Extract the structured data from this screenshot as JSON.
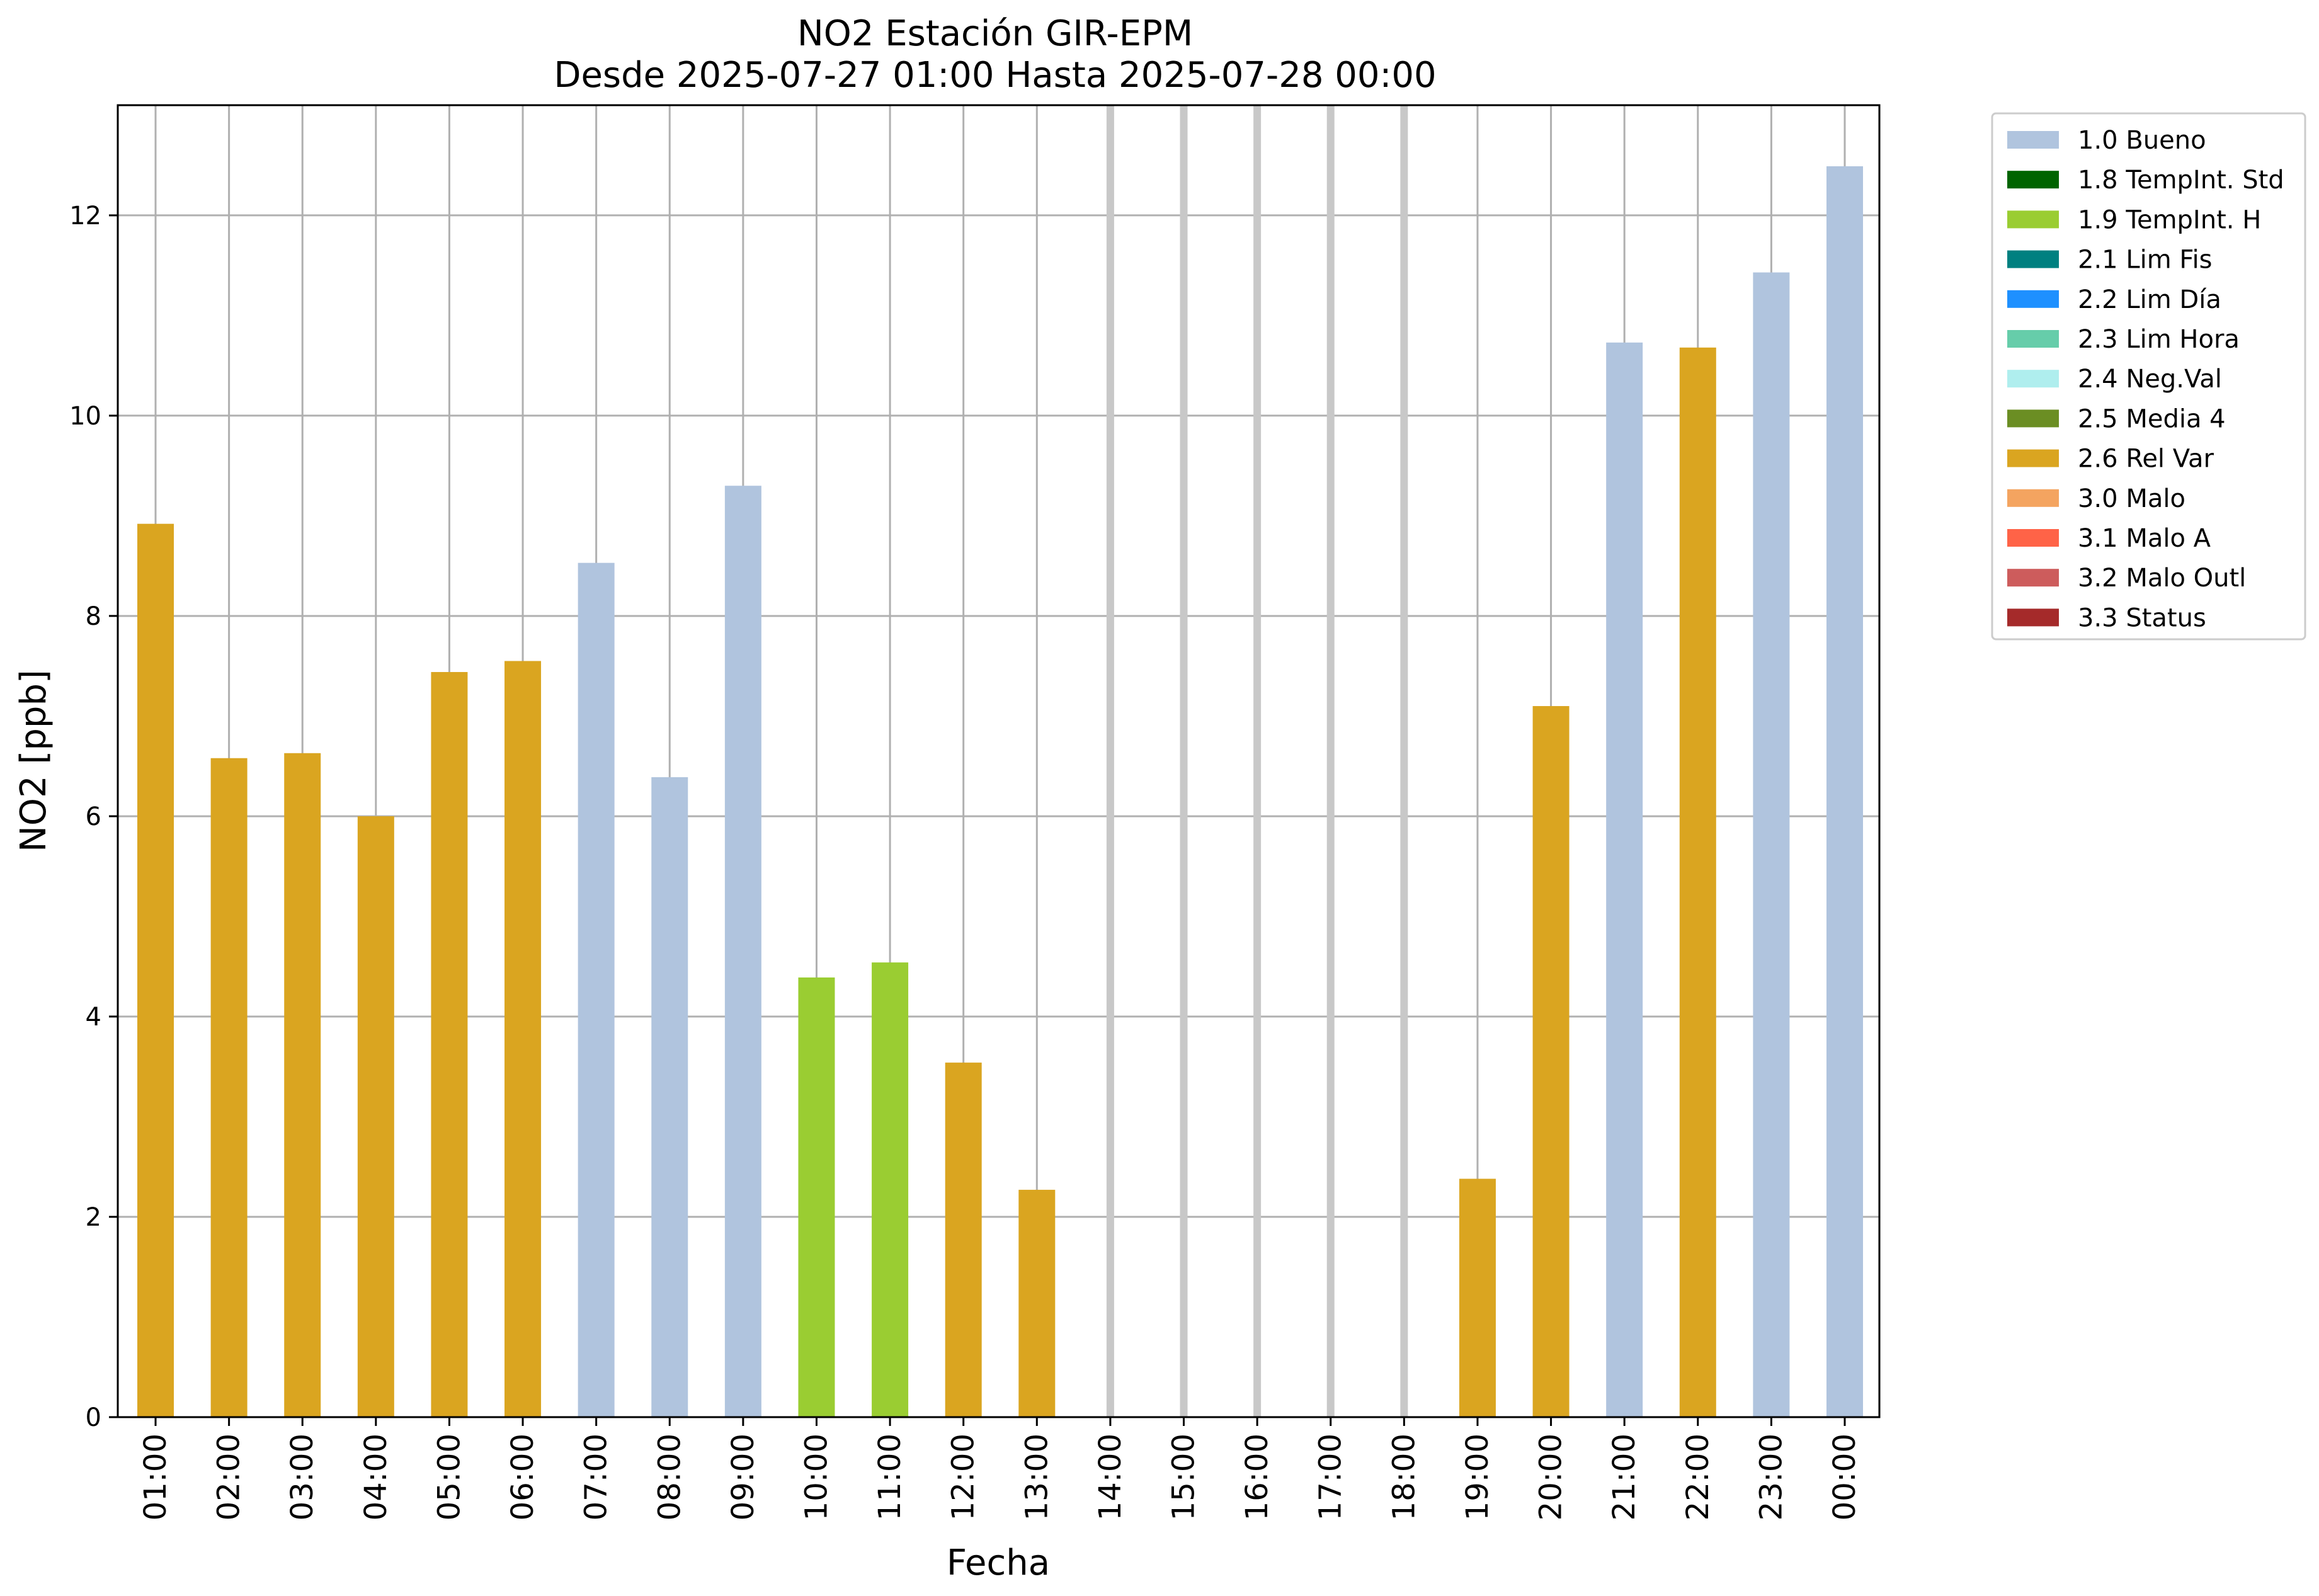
{
  "chart_data": {
    "type": "bar",
    "title": "NO2 Estación GIR-EPM",
    "subtitle": "Desde 2025-07-27 01:00 Hasta 2025-07-28 00:00",
    "xlabel": "Fecha",
    "ylabel": "NO2 [ppb]",
    "ylim": [
      0,
      13.1
    ],
    "yticks": [
      0,
      2,
      4,
      6,
      8,
      10,
      12
    ],
    "grid": true,
    "legend_position": "outside-top-right",
    "categories": [
      "01:00",
      "02:00",
      "03:00",
      "04:00",
      "05:00",
      "06:00",
      "07:00",
      "08:00",
      "09:00",
      "10:00",
      "11:00",
      "12:00",
      "13:00",
      "14:00",
      "15:00",
      "16:00",
      "17:00",
      "18:00",
      "19:00",
      "20:00",
      "21:00",
      "22:00",
      "23:00",
      "00:00"
    ],
    "values": [
      8.92,
      6.58,
      6.63,
      6.0,
      7.44,
      7.55,
      8.53,
      6.39,
      9.3,
      4.39,
      4.54,
      3.54,
      2.27,
      null,
      null,
      null,
      null,
      null,
      2.38,
      7.1,
      10.73,
      10.68,
      11.43,
      12.49
    ],
    "flags": [
      "2.6",
      "2.6",
      "2.6",
      "2.6",
      "2.6",
      "2.6",
      "1.0",
      "1.0",
      "1.0",
      "1.9",
      "1.9",
      "2.6",
      "2.6",
      null,
      null,
      null,
      null,
      null,
      "2.6",
      "2.6",
      "1.0",
      "2.6",
      "1.0",
      "1.0"
    ],
    "legend": [
      {
        "code": "1.0",
        "label": "1.0 Bueno",
        "color": "#b0c4de"
      },
      {
        "code": "1.8",
        "label": "1.8 TempInt. Std",
        "color": "#006400"
      },
      {
        "code": "1.9",
        "label": "1.9 TempInt. H",
        "color": "#9acd32"
      },
      {
        "code": "2.1",
        "label": "2.1 Lim Fis",
        "color": "#008080"
      },
      {
        "code": "2.2",
        "label": "2.2 Lim Día",
        "color": "#1e90ff"
      },
      {
        "code": "2.3",
        "label": "2.3 Lim Hora",
        "color": "#66cdaa"
      },
      {
        "code": "2.4",
        "label": "2.4 Neg.Val",
        "color": "#afeeee"
      },
      {
        "code": "2.5",
        "label": "2.5 Media 4",
        "color": "#6b8e23"
      },
      {
        "code": "2.6",
        "label": "2.6 Rel Var",
        "color": "#daa520"
      },
      {
        "code": "3.0",
        "label": "3.0 Malo",
        "color": "#f4a460"
      },
      {
        "code": "3.1",
        "label": "3.1 Malo A",
        "color": "#ff6347"
      },
      {
        "code": "3.2",
        "label": "3.2 Malo Outl",
        "color": "#cd5c5c"
      },
      {
        "code": "3.3",
        "label": "3.3 Status",
        "color": "#a52a2a"
      }
    ]
  }
}
